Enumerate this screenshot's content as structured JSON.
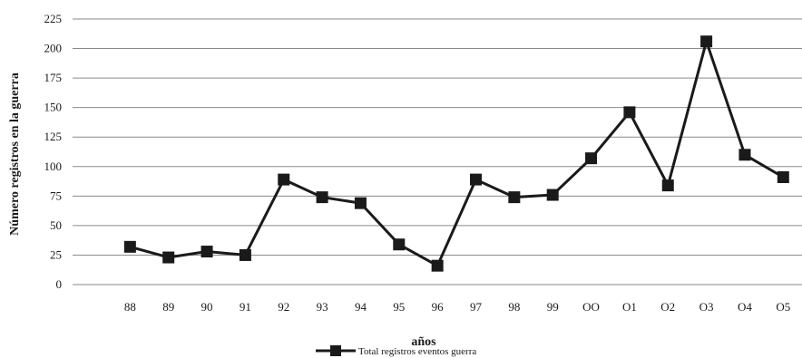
{
  "chart_data": {
    "type": "line",
    "title": "",
    "xlabel": "años",
    "ylabel": "Número registros en la guerra",
    "categories": [
      "88",
      "89",
      "90",
      "91",
      "92",
      "93",
      "94",
      "95",
      "96",
      "97",
      "98",
      "99",
      "OO",
      "O1",
      "O2",
      "O3",
      "O4",
      "O5"
    ],
    "series": [
      {
        "name": "Total registros eventos guerra",
        "values": [
          32,
          23,
          28,
          25,
          89,
          74,
          69,
          34,
          16,
          89,
          74,
          76,
          107,
          146,
          84,
          206,
          110,
          91
        ],
        "color": "#1a1a1a",
        "marker": "square"
      }
    ],
    "yticks": [
      0,
      25,
      50,
      75,
      100,
      125,
      150,
      175,
      200,
      225
    ],
    "ylim": [
      0,
      225
    ],
    "grid": true,
    "legend_position": "bottom"
  }
}
